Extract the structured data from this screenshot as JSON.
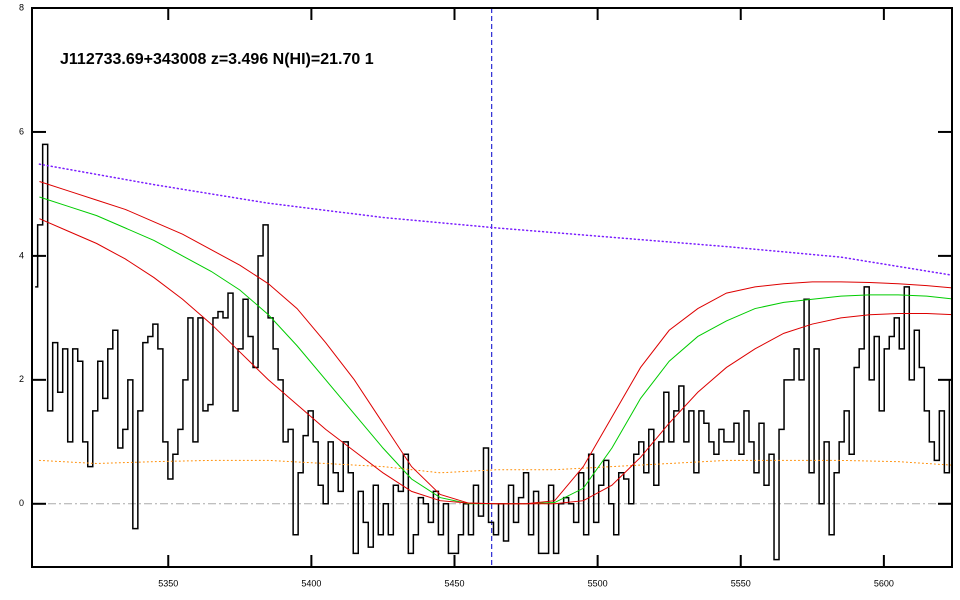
{
  "chart_data": {
    "type": "line",
    "title": "J112733.69+343008 z=3.496 N(HI)=21.70 1",
    "xlim": [
      5302.4,
      5623.8
    ],
    "ylim": [
      -1.02,
      8
    ],
    "xticks": [
      5350,
      5400,
      5450,
      5500,
      5550,
      5600
    ],
    "yticks": [
      0,
      2,
      4,
      6,
      8
    ],
    "hlines": [
      0
    ],
    "vlines": [
      5463
    ],
    "series": [
      {
        "color": "#000000",
        "style": "steps",
        "width": 1.5,
        "x": [
          5303.5,
          5305.25,
          5307,
          5308.75,
          5310.5,
          5312.25,
          5314,
          5315.75,
          5317.5,
          5319.25,
          5321,
          5322.75,
          5324.5,
          5326.25,
          5328,
          5329.75,
          5331.5,
          5333.25,
          5335,
          5336.75,
          5338.5,
          5340.25,
          5342,
          5343.75,
          5345.5,
          5347.25,
          5349,
          5350.75,
          5352.5,
          5354.25,
          5356,
          5357.75,
          5359.5,
          5361.25,
          5363,
          5364.75,
          5366.5,
          5368.25,
          5370,
          5371.75,
          5373.5,
          5375.25,
          5377,
          5378.75,
          5380.5,
          5382.25,
          5384,
          5385.75,
          5387.5,
          5389.25,
          5391,
          5392.75,
          5394.5,
          5396.25,
          5398,
          5399.75,
          5401.5,
          5403.25,
          5405,
          5406.75,
          5408.5,
          5410.25,
          5412,
          5413.75,
          5415.5,
          5417.25,
          5419,
          5420.75,
          5422.5,
          5424.25,
          5426,
          5427.75,
          5429.5,
          5431.25,
          5433,
          5434.75,
          5436.5,
          5438.25,
          5440,
          5441.75,
          5443.5,
          5445.25,
          5447,
          5448.75,
          5450.5,
          5452.25,
          5454,
          5455.75,
          5457.5,
          5459.25,
          5461,
          5462.75,
          5464.5,
          5466.25,
          5468,
          5469.75,
          5471.5,
          5473.25,
          5475,
          5476.75,
          5478.5,
          5480.25,
          5482,
          5483.75,
          5485.5,
          5487.25,
          5489,
          5490.75,
          5492.5,
          5494.25,
          5496,
          5497.75,
          5499.5,
          5501.25,
          5503,
          5504.75,
          5506.5,
          5508.25,
          5510,
          5511.75,
          5513.5,
          5515.25,
          5517,
          5518.75,
          5520.5,
          5522.25,
          5524,
          5525.75,
          5527.5,
          5529.25,
          5531,
          5532.75,
          5534.5,
          5536.25,
          5538,
          5539.75,
          5541.5,
          5543.25,
          5545,
          5546.75,
          5548.5,
          5550.25,
          5552,
          5553.75,
          5555.5,
          5557.25,
          5559,
          5560.75,
          5562.5,
          5564.25,
          5566,
          5567.75,
          5569.5,
          5571.25,
          5573,
          5574.75,
          5576.5,
          5578.25,
          5580,
          5581.75,
          5583.5,
          5585.25,
          5587,
          5588.75,
          5590.5,
          5592.25,
          5594,
          5595.75,
          5597.5,
          5599.25,
          5601,
          5602.75,
          5604.5,
          5606.25,
          5608,
          5609.75,
          5611.5,
          5613.25,
          5615,
          5616.75,
          5618.5,
          5620.25,
          5622,
          5623.75
        ],
        "values": [
          3.5,
          4.5,
          5.8,
          1.5,
          2.6,
          1.8,
          2.5,
          1.0,
          2.5,
          2.3,
          1.0,
          0.6,
          1.5,
          2.3,
          1.7,
          2.5,
          2.8,
          0.9,
          1.2,
          2.0,
          -0.4,
          1.5,
          2.6,
          2.7,
          2.9,
          2.5,
          1.0,
          0.4,
          0.8,
          1.2,
          2.0,
          3.0,
          1.0,
          3.0,
          1.5,
          1.6,
          3.0,
          3.1,
          3.0,
          3.4,
          1.5,
          2.5,
          3.3,
          2.7,
          2.2,
          4.0,
          4.5,
          3.0,
          2.5,
          2.0,
          1.0,
          1.2,
          -0.5,
          0.5,
          1.1,
          1.5,
          1.0,
          0.3,
          0.0,
          1.0,
          0.5,
          0.2,
          1.0,
          0.5,
          -0.8,
          0.2,
          -0.3,
          -0.7,
          0.3,
          -0.5,
          0.0,
          -0.5,
          0.3,
          0.2,
          0.8,
          -0.8,
          -0.5,
          0.1,
          0.0,
          -0.3,
          0.2,
          -0.5,
          0.0,
          -0.8,
          -0.8,
          -0.5,
          0.0,
          -0.5,
          0.3,
          -0.2,
          0.9,
          -0.3,
          -0.5,
          0.0,
          -0.6,
          0.3,
          -0.3,
          0.1,
          0.5,
          -0.5,
          0.2,
          -0.8,
          -0.8,
          0.3,
          -0.8,
          0.0,
          0.1,
          0.0,
          -0.3,
          0.5,
          -0.5,
          0.8,
          -0.3,
          0.3,
          0.7,
          0.0,
          -0.5,
          0.5,
          0.4,
          0.0,
          0.8,
          1.0,
          0.5,
          1.2,
          0.3,
          1.0,
          1.8,
          1.0,
          1.5,
          1.9,
          1.0,
          1.5,
          0.5,
          1.5,
          1.3,
          1.0,
          0.8,
          1.2,
          1.0,
          1.0,
          1.3,
          0.8,
          1.5,
          1.0,
          0.5,
          1.3,
          0.3,
          0.8,
          -0.9,
          1.2,
          2.0,
          2.0,
          2.5,
          2.0,
          3.3,
          0.5,
          2.5,
          0.0,
          1.0,
          -0.5,
          0.5,
          1.0,
          1.5,
          0.8,
          2.2,
          2.5,
          3.5,
          2.0,
          2.7,
          1.5,
          2.5,
          2.7,
          3.0,
          2.5,
          3.5,
          2.0,
          2.8,
          2.2,
          1.5,
          1.0,
          0.7,
          1.5,
          0.5,
          2.0
        ]
      },
      {
        "color": "#ff8c00",
        "style": "dotted",
        "width": 1,
        "x": [
          5305,
          5325,
          5345,
          5365,
          5385,
          5405,
          5425,
          5445,
          5465,
          5485,
          5505,
          5525,
          5545,
          5565,
          5585,
          5605,
          5625
        ],
        "values": [
          0.7,
          0.65,
          0.68,
          0.7,
          0.7,
          0.65,
          0.6,
          0.5,
          0.55,
          0.55,
          0.6,
          0.65,
          0.7,
          0.7,
          0.7,
          0.68,
          0.62
        ]
      },
      {
        "color": "#7a1cff",
        "style": "dotted",
        "width": 1.5,
        "x": [
          5305,
          5345,
          5385,
          5425,
          5465,
          5505,
          5545,
          5585,
          5625
        ],
        "values": [
          5.48,
          5.15,
          4.85,
          4.62,
          4.45,
          4.3,
          4.15,
          3.98,
          3.68
        ]
      },
      {
        "color": "#00cc00",
        "style": "solid",
        "width": 1,
        "x": [
          5305,
          5315,
          5325,
          5335,
          5345,
          5355,
          5365,
          5375,
          5385,
          5395,
          5405,
          5415,
          5425,
          5435,
          5445,
          5455,
          5465,
          5475,
          5485,
          5495,
          5505,
          5515,
          5525,
          5535,
          5545,
          5555,
          5565,
          5575,
          5585,
          5595,
          5605,
          5615,
          5625
        ],
        "values": [
          4.95,
          4.8,
          4.65,
          4.45,
          4.25,
          4.0,
          3.75,
          3.45,
          3.05,
          2.55,
          2.0,
          1.45,
          0.9,
          0.4,
          0.1,
          0,
          0,
          0,
          0.02,
          0.25,
          0.9,
          1.7,
          2.3,
          2.7,
          2.95,
          3.15,
          3.25,
          3.3,
          3.35,
          3.37,
          3.37,
          3.35,
          3.3
        ]
      },
      {
        "color": "#dd0000",
        "style": "solid",
        "width": 1,
        "x": [
          5305,
          5315,
          5325,
          5335,
          5345,
          5355,
          5365,
          5375,
          5385,
          5395,
          5405,
          5415,
          5425,
          5435,
          5445,
          5455,
          5465,
          5475,
          5485,
          5495,
          5505,
          5515,
          5525,
          5535,
          5545,
          5555,
          5565,
          5575,
          5585,
          5595,
          5605,
          5615,
          5625
        ],
        "values": [
          5.2,
          5.05,
          4.9,
          4.75,
          4.55,
          4.35,
          4.1,
          3.85,
          3.55,
          3.15,
          2.6,
          2.0,
          1.3,
          0.6,
          0.15,
          0.01,
          0,
          0,
          0.05,
          0.6,
          1.4,
          2.2,
          2.8,
          3.15,
          3.4,
          3.5,
          3.55,
          3.58,
          3.58,
          3.57,
          3.55,
          3.52,
          3.48
        ]
      },
      {
        "color": "#dd0000",
        "style": "solid",
        "width": 1,
        "x": [
          5305,
          5315,
          5325,
          5335,
          5345,
          5355,
          5365,
          5375,
          5385,
          5395,
          5405,
          5415,
          5425,
          5435,
          5445,
          5455,
          5465,
          5475,
          5485,
          5495,
          5505,
          5515,
          5525,
          5535,
          5545,
          5555,
          5565,
          5575,
          5585,
          5595,
          5605,
          5615,
          5625
        ],
        "values": [
          4.6,
          4.4,
          4.2,
          3.95,
          3.65,
          3.3,
          2.9,
          2.45,
          2.0,
          1.6,
          1.2,
          0.85,
          0.5,
          0.2,
          0.05,
          0.01,
          0,
          0,
          0,
          0.05,
          0.3,
          0.75,
          1.3,
          1.8,
          2.2,
          2.5,
          2.75,
          2.9,
          3.0,
          3.05,
          3.07,
          3.07,
          3.05
        ]
      }
    ]
  }
}
